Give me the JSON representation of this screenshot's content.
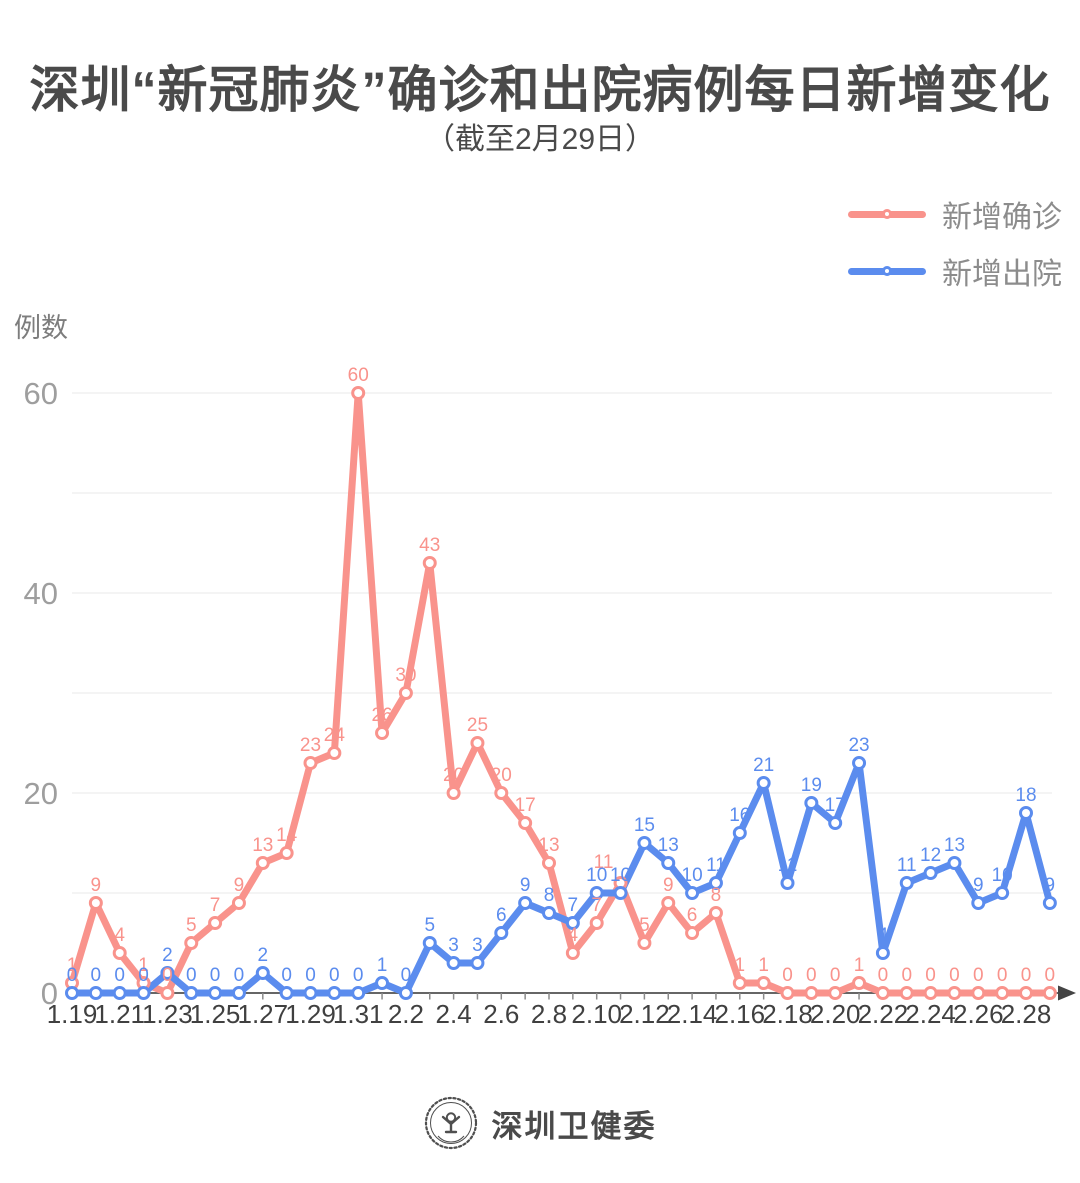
{
  "chart_data": {
    "type": "line",
    "title": "深圳“新冠肺炎”确诊和出院病例每日新增变化",
    "subtitle": "（截至2月29日）",
    "ylabel": "例数",
    "categories": [
      "1.19",
      "1.20",
      "1.21",
      "1.22",
      "1.23",
      "1.24",
      "1.25",
      "1.26",
      "1.27",
      "1.28",
      "1.29",
      "1.30",
      "1.31",
      "2.1",
      "2.2",
      "2.3",
      "2.4",
      "2.5",
      "2.6",
      "2.7",
      "2.8",
      "2.9",
      "2.10",
      "2.11",
      "2.12",
      "2.13",
      "2.14",
      "2.15",
      "2.16",
      "2.17",
      "2.18",
      "2.19",
      "2.20",
      "2.21",
      "2.22",
      "2.23",
      "2.24",
      "2.25",
      "2.26",
      "2.27",
      "2.28",
      "2.29"
    ],
    "xtick_labels": [
      "1.19",
      "1.21",
      "1.23",
      "1.25",
      "1.27",
      "1.29",
      "1.31",
      "2.2",
      "2.4",
      "2.6",
      "2.8",
      "2.10",
      "2.12",
      "2.14",
      "2.16",
      "2.18",
      "2.20",
      "2.22",
      "2.24",
      "2.26",
      "2.28"
    ],
    "series": [
      {
        "name": "新增确诊",
        "color": "#F9938C",
        "values": [
          1,
          9,
          4,
          1,
          0,
          5,
          7,
          9,
          13,
          14,
          23,
          24,
          60,
          26,
          30,
          43,
          20,
          25,
          20,
          17,
          13,
          4,
          7,
          11,
          5,
          9,
          6,
          8,
          1,
          1,
          0,
          0,
          0,
          1,
          0,
          0,
          0,
          0,
          0,
          0,
          0,
          0
        ]
      },
      {
        "name": "新增出院",
        "color": "#5B8CEE",
        "values": [
          0,
          0,
          0,
          0,
          2,
          0,
          0,
          0,
          2,
          0,
          0,
          0,
          0,
          1,
          0,
          5,
          3,
          3,
          6,
          9,
          8,
          7,
          10,
          10,
          15,
          13,
          10,
          11,
          16,
          21,
          11,
          19,
          17,
          23,
          4,
          11,
          12,
          13,
          9,
          10,
          18,
          9
        ]
      }
    ],
    "yticks": [
      0,
      20,
      40,
      60
    ],
    "ylim": [
      0,
      60
    ],
    "grid": "horizontal every 10, light gray",
    "legend_position": "top-right",
    "data_labels": true
  },
  "footer": {
    "source": "深圳卫健委",
    "logo": "shenzhen-health-commission-seal"
  }
}
